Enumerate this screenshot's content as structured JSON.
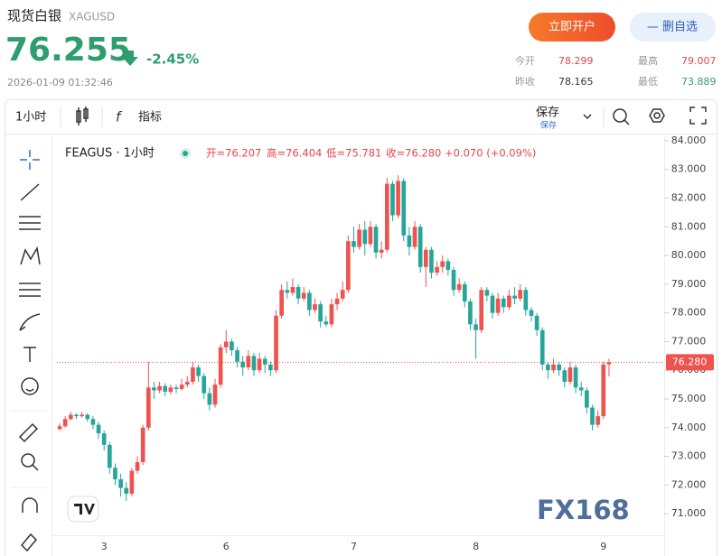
{
  "header": {
    "title": "现货白银",
    "code": "XAGUSD",
    "price": "76.255",
    "change": "-2.45%",
    "time": "2026-01-09 01:32:46",
    "open_account": "立即开户",
    "remove_watch": "— 删自选",
    "stats": [
      {
        "label": "今开",
        "value": "78.299"
      },
      {
        "label": "最高",
        "value": "79.007"
      },
      {
        "label": "昨收",
        "value": "78.165"
      },
      {
        "label": "最低",
        "value": "73.889"
      }
    ]
  },
  "toolbar": {
    "interval": "1小时",
    "indicators": "指标",
    "save": "保存",
    "save_sub": "保存"
  },
  "chart_data": {
    "type": "candlestick",
    "symbol": "FEAGUS · 1小时",
    "legend": {
      "open": "开=76.207",
      "high": "高=76.404",
      "low": "低=75.781",
      "close": "收=76.280",
      "change": "+0.070 (+0.09%)"
    },
    "up_color": "#ef5350",
    "down_color": "#26a69a",
    "ylim": [
      70.25,
      84.25
    ],
    "yticks": [
      {
        "value": 84,
        "label": "84.000"
      },
      {
        "value": 83,
        "label": "83.000"
      },
      {
        "value": 82,
        "label": "82.000"
      },
      {
        "value": 81,
        "label": "81.000"
      },
      {
        "value": 80,
        "label": "80.000"
      },
      {
        "value": 79,
        "label": "79.000"
      },
      {
        "value": 78,
        "label": "78.000"
      },
      {
        "value": 77,
        "label": "77.000"
      },
      {
        "value": 76,
        "label": "76.000"
      },
      {
        "value": 75,
        "label": "75.000"
      },
      {
        "value": 74,
        "label": "74.000"
      },
      {
        "value": 73,
        "label": "73.000"
      },
      {
        "value": 72,
        "label": "72.000"
      },
      {
        "value": 71,
        "label": "71.000"
      }
    ],
    "price_line": {
      "value": 76.28,
      "label": "76.280"
    },
    "watermark": "FX168",
    "categories": [
      null,
      null,
      null,
      null,
      null,
      null,
      null,
      null,
      "3",
      null,
      null,
      null,
      null,
      null,
      null,
      null,
      null,
      null,
      null,
      null,
      null,
      null,
      null,
      null,
      null,
      null,
      null,
      null,
      null,
      null,
      "6",
      null,
      null,
      null,
      null,
      null,
      null,
      null,
      null,
      null,
      null,
      null,
      null,
      null,
      null,
      null,
      null,
      null,
      null,
      null,
      null,
      null,
      null,
      "7",
      null,
      null,
      null,
      null,
      null,
      null,
      null,
      null,
      null,
      null,
      null,
      null,
      null,
      null,
      null,
      null,
      null,
      null,
      null,
      null,
      null,
      "8",
      null,
      null,
      null,
      null,
      null,
      null,
      null,
      null,
      null,
      null,
      null,
      null,
      null,
      null,
      null,
      null,
      null,
      null,
      null,
      null,
      null,
      null,
      "9",
      null
    ],
    "ohlc": [
      [
        73.95,
        74.15,
        73.9,
        74.05
      ],
      [
        74.05,
        74.4,
        74.0,
        74.3
      ],
      [
        74.3,
        74.55,
        74.25,
        74.45
      ],
      [
        74.45,
        74.5,
        74.3,
        74.4
      ],
      [
        74.4,
        74.55,
        74.35,
        74.45
      ],
      [
        74.45,
        74.5,
        74.2,
        74.3
      ],
      [
        74.3,
        74.4,
        73.95,
        74.1
      ],
      [
        74.1,
        74.2,
        73.6,
        73.8
      ],
      [
        73.8,
        73.9,
        73.2,
        73.4
      ],
      [
        73.4,
        73.5,
        72.4,
        72.6
      ],
      [
        72.6,
        72.75,
        72.0,
        72.2
      ],
      [
        72.2,
        72.4,
        71.6,
        71.9
      ],
      [
        71.9,
        72.1,
        71.45,
        71.7
      ],
      [
        71.7,
        72.6,
        71.6,
        72.5
      ],
      [
        72.5,
        73.0,
        72.4,
        72.8
      ],
      [
        72.8,
        74.1,
        72.7,
        74.0
      ],
      [
        74.0,
        76.3,
        73.9,
        75.4
      ],
      [
        75.4,
        75.6,
        75.0,
        75.3
      ],
      [
        75.3,
        75.6,
        75.2,
        75.45
      ],
      [
        75.45,
        75.55,
        75.1,
        75.25
      ],
      [
        75.25,
        75.5,
        75.15,
        75.4
      ],
      [
        75.4,
        75.5,
        75.2,
        75.35
      ],
      [
        75.35,
        75.7,
        75.3,
        75.5
      ],
      [
        75.5,
        75.8,
        75.4,
        75.6
      ],
      [
        75.6,
        76.3,
        75.5,
        76.1
      ],
      [
        76.1,
        76.2,
        75.6,
        75.8
      ],
      [
        75.8,
        75.9,
        75.0,
        75.2
      ],
      [
        75.2,
        75.4,
        74.6,
        74.8
      ],
      [
        74.8,
        75.7,
        74.7,
        75.5
      ],
      [
        75.5,
        76.9,
        75.4,
        76.8
      ],
      [
        76.8,
        77.4,
        76.6,
        77.0
      ],
      [
        77.0,
        77.1,
        76.5,
        76.7
      ],
      [
        76.7,
        76.8,
        76.1,
        76.3
      ],
      [
        76.3,
        76.5,
        75.8,
        76.1
      ],
      [
        76.1,
        76.7,
        76.0,
        76.5
      ],
      [
        76.5,
        76.6,
        75.8,
        76.0
      ],
      [
        76.0,
        76.6,
        75.9,
        76.4
      ],
      [
        76.4,
        76.5,
        75.9,
        76.2
      ],
      [
        76.2,
        76.3,
        75.8,
        76.0
      ],
      [
        76.0,
        78.1,
        75.9,
        77.9
      ],
      [
        77.9,
        79.0,
        77.8,
        78.8
      ],
      [
        78.8,
        79.1,
        78.5,
        78.7
      ],
      [
        78.7,
        79.2,
        78.6,
        78.9
      ],
      [
        78.9,
        79.0,
        78.3,
        78.5
      ],
      [
        78.5,
        78.9,
        78.4,
        78.7
      ],
      [
        78.7,
        78.8,
        77.9,
        78.1
      ],
      [
        78.1,
        78.5,
        78.0,
        78.3
      ],
      [
        78.3,
        78.4,
        77.5,
        77.7
      ],
      [
        77.7,
        77.9,
        77.5,
        77.6
      ],
      [
        77.6,
        78.5,
        77.5,
        78.3
      ],
      [
        78.3,
        78.7,
        78.1,
        78.5
      ],
      [
        78.5,
        79.1,
        78.4,
        78.8
      ],
      [
        78.8,
        80.7,
        78.7,
        80.5
      ],
      [
        80.5,
        81.0,
        80.1,
        80.3
      ],
      [
        80.3,
        81.1,
        80.2,
        80.9
      ],
      [
        80.9,
        81.2,
        80.0,
        80.4
      ],
      [
        80.4,
        81.2,
        80.3,
        81.0
      ],
      [
        81.0,
        81.1,
        79.9,
        80.1
      ],
      [
        80.1,
        80.5,
        79.9,
        80.2
      ],
      [
        80.2,
        82.7,
        80.1,
        82.5
      ],
      [
        82.5,
        82.6,
        81.2,
        81.4
      ],
      [
        81.4,
        82.8,
        81.3,
        82.6
      ],
      [
        82.6,
        82.7,
        80.5,
        80.7
      ],
      [
        80.7,
        81.0,
        80.0,
        80.3
      ],
      [
        80.3,
        81.2,
        80.2,
        81.0
      ],
      [
        81.0,
        81.1,
        79.4,
        79.6
      ],
      [
        79.6,
        80.3,
        78.9,
        80.2
      ],
      [
        80.2,
        80.3,
        79.2,
        79.4
      ],
      [
        79.4,
        79.8,
        79.3,
        79.6
      ],
      [
        79.6,
        80.0,
        79.4,
        79.8
      ],
      [
        79.8,
        79.9,
        79.3,
        79.5
      ],
      [
        79.5,
        79.6,
        78.6,
        78.8
      ],
      [
        78.8,
        79.2,
        78.7,
        79.0
      ],
      [
        79.0,
        79.1,
        78.2,
        78.4
      ],
      [
        78.4,
        78.5,
        77.4,
        77.6
      ],
      [
        77.6,
        77.8,
        76.4,
        77.4
      ],
      [
        77.4,
        78.9,
        77.3,
        78.8
      ],
      [
        78.8,
        78.9,
        78.4,
        78.6
      ],
      [
        78.6,
        78.7,
        77.8,
        78.0
      ],
      [
        78.0,
        78.7,
        77.9,
        78.5
      ],
      [
        78.5,
        78.6,
        78.0,
        78.2
      ],
      [
        78.2,
        78.8,
        78.1,
        78.6
      ],
      [
        78.6,
        78.9,
        78.3,
        78.5
      ],
      [
        78.5,
        79.0,
        78.4,
        78.8
      ],
      [
        78.8,
        78.9,
        77.9,
        78.1
      ],
      [
        78.1,
        78.2,
        77.7,
        77.9
      ],
      [
        77.9,
        78.0,
        77.2,
        77.4
      ],
      [
        77.4,
        77.5,
        76.0,
        76.2
      ],
      [
        76.2,
        76.3,
        75.7,
        76.0
      ],
      [
        76.0,
        76.4,
        75.9,
        76.2
      ],
      [
        76.2,
        76.3,
        75.8,
        76.0
      ],
      [
        76.0,
        76.1,
        75.4,
        75.6
      ],
      [
        75.6,
        76.3,
        75.5,
        76.1
      ],
      [
        76.1,
        76.2,
        75.2,
        75.4
      ],
      [
        75.4,
        75.6,
        75.1,
        75.3
      ],
      [
        75.3,
        75.4,
        74.5,
        74.7
      ],
      [
        74.7,
        74.8,
        73.9,
        74.1
      ],
      [
        74.1,
        74.6,
        74.0,
        74.4
      ],
      [
        74.4,
        76.3,
        74.3,
        76.2
      ],
      [
        76.207,
        76.404,
        75.781,
        76.28
      ]
    ]
  }
}
